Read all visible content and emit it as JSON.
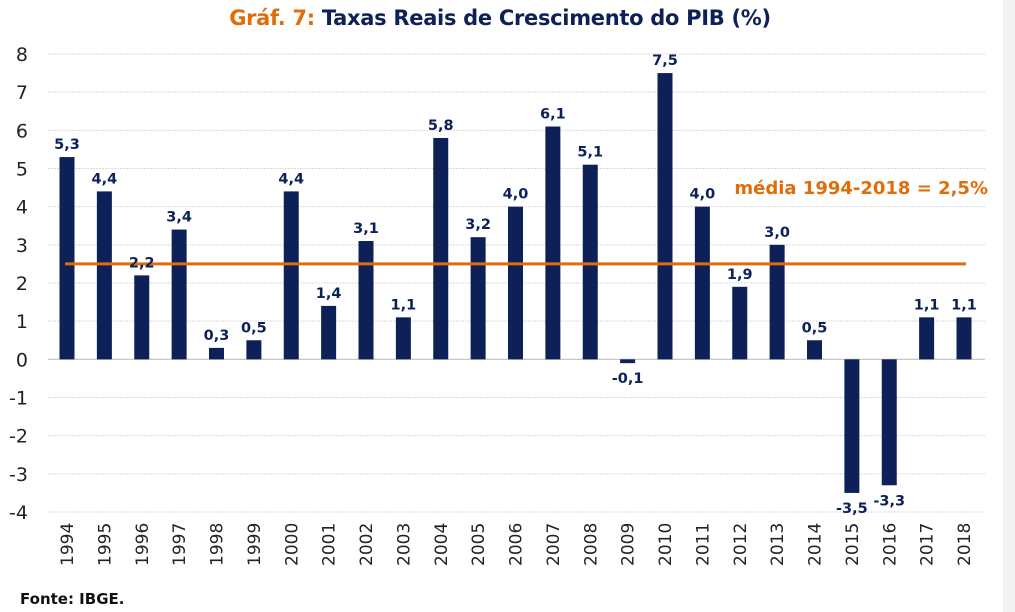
{
  "chart_data": {
    "type": "bar",
    "title_prefix": "Gráf. 7:",
    "title": "Taxas Reais de Crescimento do PIB (%)",
    "categories": [
      "1994",
      "1995",
      "1996",
      "1997",
      "1998",
      "1999",
      "2000",
      "2001",
      "2002",
      "2003",
      "2004",
      "2005",
      "2006",
      "2007",
      "2008",
      "2009",
      "2010",
      "2011",
      "2012",
      "2013",
      "2014",
      "2015",
      "2016",
      "2017",
      "2018"
    ],
    "values": [
      5.3,
      4.4,
      2.2,
      3.4,
      0.3,
      0.5,
      4.4,
      1.4,
      3.1,
      1.1,
      5.8,
      3.2,
      4.0,
      6.1,
      5.1,
      -0.1,
      7.5,
      4.0,
      1.9,
      3.0,
      0.5,
      -3.5,
      -3.3,
      1.1,
      1.1
    ],
    "data_labels": [
      "5,3",
      "4,4",
      "2,2",
      "3,4",
      "0,3",
      "0,5",
      "4,4",
      "1,4",
      "3,1",
      "1,1",
      "5,8",
      "3,2",
      "4,0",
      "6,1",
      "5,1",
      "-0,1",
      "7,5",
      "4,0",
      "1,9",
      "3,0",
      "0,5",
      "-3,5",
      "-3,3",
      "1,1",
      "1,1"
    ],
    "ylim": [
      -4,
      8
    ],
    "yticks": [
      8,
      7,
      6,
      5,
      4,
      3,
      2,
      1,
      0,
      -1,
      -2,
      -3,
      -4
    ],
    "ytick_labels": [
      "8",
      "7",
      "6",
      "5",
      "4",
      "3",
      "2",
      "1",
      "0",
      "-1",
      "-2",
      "-3",
      "-4"
    ],
    "xlabel": "",
    "ylabel": "",
    "grid": true,
    "reference_line": {
      "value": 2.5,
      "label": "média 1994-2018 = 2,5%"
    },
    "legend": "none"
  },
  "colors": {
    "bar": "#0d2158",
    "average_line": "#e36c0a",
    "title_prefix": "#e36c0a",
    "title": "#0d2158",
    "grid": "#d9d9d9"
  },
  "footer": {
    "source": "Fonte: IBGE."
  }
}
